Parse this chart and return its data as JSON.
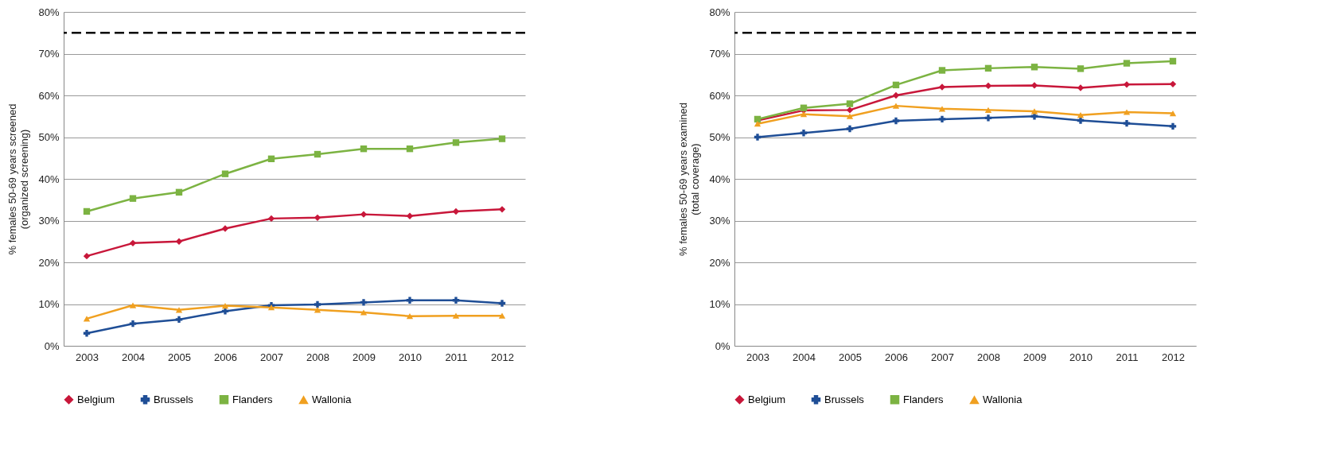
{
  "chart_data": [
    {
      "type": "line",
      "ylabel": "% females 50-69 years screened\n(organized screening)",
      "categories": [
        "2003",
        "2004",
        "2005",
        "2006",
        "2007",
        "2008",
        "2009",
        "2010",
        "2011",
        "2012"
      ],
      "ylim": [
        0,
        80
      ],
      "yticks": [
        {
          "value": 0,
          "label": "0%"
        },
        {
          "value": 10,
          "label": "10%"
        },
        {
          "value": 20,
          "label": "20%"
        },
        {
          "value": 30,
          "label": "30%"
        },
        {
          "value": 40,
          "label": "40%"
        },
        {
          "value": 50,
          "label": "50%"
        },
        {
          "value": 60,
          "label": "60%"
        },
        {
          "value": 70,
          "label": "70%"
        },
        {
          "value": 80,
          "label": "80%"
        }
      ],
      "grid": "y",
      "legend": "bottom",
      "ref_lines": [
        {
          "axis": "y",
          "value": 75,
          "color": "#000000",
          "line_style": "dashed"
        }
      ],
      "series": [
        {
          "name": "Belgium",
          "color": "#c8173a",
          "marker": "diamond",
          "values": [
            21.5,
            24.6,
            25.0,
            28.1,
            30.5,
            30.7,
            31.5,
            31.1,
            32.2,
            32.7
          ]
        },
        {
          "name": "Brussels",
          "color": "#1f4e96",
          "marker": "cross",
          "values": [
            3.0,
            5.3,
            6.3,
            8.3,
            9.7,
            9.9,
            10.4,
            10.9,
            10.9,
            10.2
          ]
        },
        {
          "name": "Flanders",
          "color": "#7cb342",
          "marker": "square",
          "values": [
            32.2,
            35.3,
            36.8,
            41.2,
            44.8,
            45.9,
            47.2,
            47.2,
            48.7,
            49.6
          ]
        },
        {
          "name": "Wallonia",
          "color": "#f0a020",
          "marker": "triangle",
          "values": [
            6.5,
            9.7,
            8.6,
            9.6,
            9.2,
            8.6,
            8.0,
            7.1,
            7.2,
            7.2
          ]
        }
      ]
    },
    {
      "type": "line",
      "ylabel": "% females 50-69 years examined\n(total coverage)",
      "categories": [
        "2003",
        "2004",
        "2005",
        "2006",
        "2007",
        "2008",
        "2009",
        "2010",
        "2011",
        "2012"
      ],
      "ylim": [
        0,
        80
      ],
      "yticks": [
        {
          "value": 0,
          "label": "0%"
        },
        {
          "value": 10,
          "label": "10%"
        },
        {
          "value": 20,
          "label": "20%"
        },
        {
          "value": 30,
          "label": "30%"
        },
        {
          "value": 40,
          "label": "40%"
        },
        {
          "value": 50,
          "label": "50%"
        },
        {
          "value": 60,
          "label": "60%"
        },
        {
          "value": 70,
          "label": "70%"
        },
        {
          "value": 80,
          "label": "80%"
        }
      ],
      "grid": "y",
      "legend": "bottom",
      "ref_lines": [
        {
          "axis": "y",
          "value": 75,
          "color": "#000000",
          "line_style": "dashed"
        }
      ],
      "series": [
        {
          "name": "Belgium",
          "color": "#c8173a",
          "marker": "diamond",
          "values": [
            54.0,
            56.4,
            56.5,
            60.0,
            62.0,
            62.3,
            62.4,
            61.8,
            62.6,
            62.7
          ]
        },
        {
          "name": "Brussels",
          "color": "#1f4e96",
          "marker": "cross",
          "values": [
            50.0,
            51.0,
            52.0,
            53.9,
            54.3,
            54.6,
            55.0,
            54.0,
            53.3,
            52.6
          ]
        },
        {
          "name": "Flanders",
          "color": "#7cb342",
          "marker": "square",
          "values": [
            54.3,
            57.0,
            58.0,
            62.5,
            66.0,
            66.5,
            66.8,
            66.4,
            67.7,
            68.2
          ]
        },
        {
          "name": "Wallonia",
          "color": "#f0a020",
          "marker": "triangle",
          "values": [
            53.2,
            55.5,
            55.0,
            57.5,
            56.8,
            56.5,
            56.2,
            55.3,
            56.0,
            55.7
          ]
        }
      ]
    }
  ]
}
